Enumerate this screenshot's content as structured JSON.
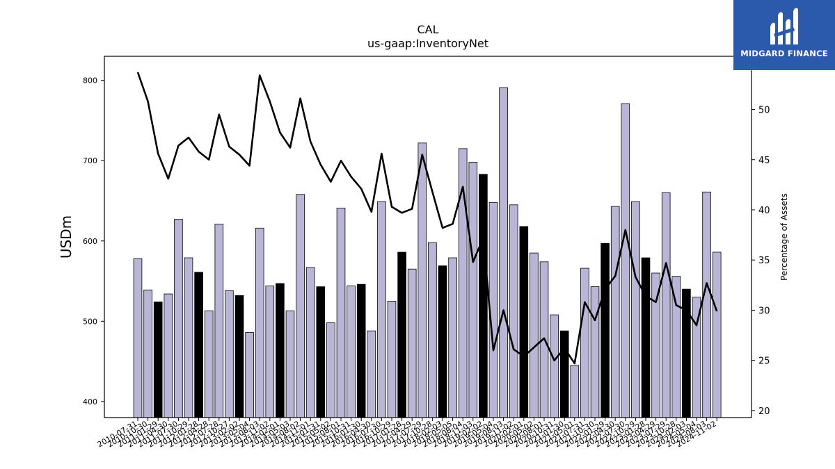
{
  "brand": {
    "name": "MIDGARD FINANCE"
  },
  "chart_data": {
    "type": "bar",
    "title": "CAL",
    "subtitle": "us-gaap:InventoryNet",
    "ylabel": "USDm",
    "y2label": "Percentage of Assets",
    "ylim": [
      380,
      830
    ],
    "y2lim": [
      19.3,
      55.3
    ],
    "yticks": [
      400,
      500,
      600,
      700,
      800
    ],
    "y2ticks": [
      20,
      25,
      30,
      35,
      40,
      45,
      50
    ],
    "grid": false,
    "colors": {
      "bar": "#b9b5d6",
      "bar_highlight": "#000000",
      "line": "#000000"
    },
    "categories": [
      "2010-07-31",
      "2010-10-30",
      "2011-01-29",
      "2011-04-30",
      "2011-07-30",
      "2011-10-29",
      "2012-01-28",
      "2012-04-28",
      "2012-07-28",
      "2012-10-27",
      "2013-02-02",
      "2013-05-04",
      "2013-08-03",
      "2013-11-02",
      "2014-02-01",
      "2014-05-03",
      "2014-08-02",
      "2014-11-01",
      "2015-01-31",
      "2015-05-02",
      "2015-08-01",
      "2015-10-31",
      "2016-01-30",
      "2016-04-30",
      "2016-07-30",
      "2016-10-29",
      "2017-01-28",
      "2017-04-29",
      "2017-07-29",
      "2017-10-28",
      "2018-02-03",
      "2018-05-05",
      "2018-08-04",
      "2018-11-03",
      "2019-02-02",
      "2019-05-04",
      "2019-08-03",
      "2019-11-02",
      "2020-02-01",
      "2020-05-02",
      "2020-08-01",
      "2020-10-31",
      "2021-01-30",
      "2021-05-01",
      "2021-07-31",
      "2021-10-30",
      "2022-01-29",
      "2022-04-30",
      "2022-07-30",
      "2022-10-29",
      "2023-01-28",
      "2023-04-29",
      "2023-07-29",
      "2023-10-28",
      "2024-02-03",
      "2024-05-04",
      "2024-08-03",
      "2024-11-02"
    ],
    "series": [
      {
        "kind": "bar",
        "values": [
          578,
          539,
          524,
          534,
          627,
          579,
          561,
          513,
          621,
          538,
          532,
          486,
          616,
          544,
          547,
          513,
          658,
          567,
          543,
          498,
          641,
          544,
          546,
          488,
          649,
          525,
          586,
          565,
          722,
          598,
          569,
          579,
          715,
          698,
          683,
          648,
          791,
          645,
          618,
          585,
          574,
          508,
          488,
          445,
          566,
          543,
          597,
          643,
          771,
          649,
          579,
          560,
          660,
          556,
          540,
          530,
          661,
          586
        ],
        "highlight": [
          false,
          false,
          true,
          false,
          false,
          false,
          true,
          false,
          false,
          false,
          true,
          false,
          false,
          false,
          true,
          false,
          false,
          false,
          true,
          false,
          false,
          false,
          true,
          false,
          false,
          false,
          true,
          false,
          false,
          false,
          true,
          false,
          false,
          false,
          true,
          false,
          false,
          false,
          true,
          false,
          false,
          false,
          true,
          false,
          false,
          false,
          true,
          false,
          false,
          false,
          true,
          false,
          false,
          false,
          true,
          false,
          false,
          false
        ]
      },
      {
        "kind": "line",
        "axis": "right",
        "values": [
          53.7,
          50.8,
          45.6,
          43.1,
          46.4,
          47.2,
          45.8,
          45.0,
          49.5,
          46.3,
          45.5,
          44.4,
          53.4,
          50.8,
          47.7,
          46.2,
          51.1,
          46.8,
          44.5,
          42.8,
          44.9,
          43.3,
          42.1,
          39.8,
          45.6,
          40.3,
          39.7,
          40.1,
          45.5,
          41.8,
          38.2,
          38.6,
          42.3,
          34.8,
          37.2,
          26.0,
          30.0,
          26.1,
          25.4,
          26.3,
          27.2,
          25.0,
          26.2,
          24.7,
          30.8,
          29.0,
          32.1,
          33.4,
          38.0,
          33.3,
          31.4,
          30.8,
          34.7,
          30.5,
          30.0,
          28.5,
          32.7,
          29.9
        ]
      }
    ]
  }
}
